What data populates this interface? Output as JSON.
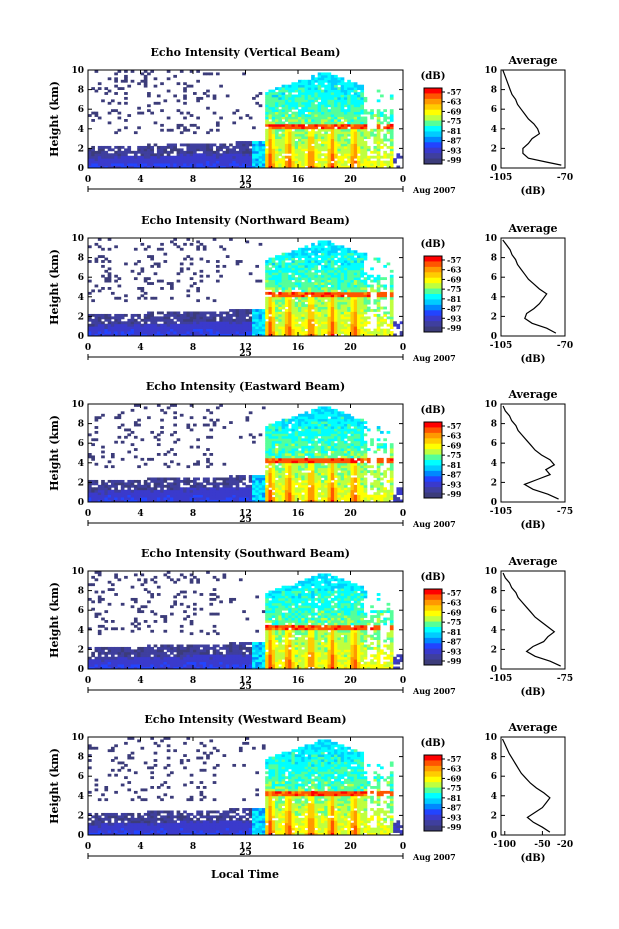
{
  "figure": {
    "bottom_xlabel": "Local Time"
  },
  "colorbar": {
    "label": "(dB)",
    "tick_labels": [
      "-57",
      "-63",
      "-69",
      "-75",
      "-81",
      "-87",
      "-93",
      "-99"
    ],
    "colors": [
      "#ff0000",
      "#ff5500",
      "#ff9900",
      "#ffcc00",
      "#ffff00",
      "#bfff3f",
      "#55ff99",
      "#00ffff",
      "#00ccff",
      "#0088ff",
      "#2244ff",
      "#3a3acc",
      "#3f3f9e",
      "#3c3c7a"
    ]
  },
  "chart_data": [
    {
      "type": "heatmap",
      "title": "Echo Intensity (Vertical Beam)",
      "ylabel": "Height (km)",
      "ylim": [
        0,
        10
      ],
      "y_ticks": [
        "0",
        "2",
        "4",
        "6",
        "8",
        "10"
      ],
      "xlim": [
        0,
        24
      ],
      "x_ticks": [
        "0",
        "4",
        "8",
        "12",
        "16",
        "20",
        "0"
      ],
      "date_label": "25",
      "month_label": "Aug 2007",
      "color_range_db": [
        -99,
        -57
      ],
      "average_profile": {
        "title": "Average",
        "xlabel": "(dB)",
        "x_tick_labels": [
          "-105",
          "-70"
        ],
        "xlim": [
          -105,
          -70
        ],
        "ylim": [
          0,
          10
        ],
        "y_ticks": [
          "0",
          "2",
          "4",
          "6",
          "8",
          "10"
        ],
        "height_km": [
          0.3,
          0.6,
          1.0,
          1.5,
          2.0,
          2.5,
          3.0,
          3.5,
          4.0,
          4.5,
          5.0,
          5.5,
          6.0,
          6.5,
          7.0,
          7.5,
          8.0,
          8.5,
          9.0,
          9.5,
          10.0
        ],
        "db": [
          -72,
          -80,
          -90,
          -93,
          -93,
          -90,
          -88,
          -84,
          -85,
          -87,
          -90,
          -92,
          -94,
          -96,
          -97,
          -99,
          -100,
          -101,
          -102,
          -103,
          -104
        ]
      }
    },
    {
      "type": "heatmap",
      "title": "Echo Intensity (Northward Beam)",
      "ylabel": "Height (km)",
      "ylim": [
        0,
        10
      ],
      "y_ticks": [
        "0",
        "2",
        "4",
        "6",
        "8",
        "10"
      ],
      "xlim": [
        0,
        24
      ],
      "x_ticks": [
        "0",
        "4",
        "8",
        "12",
        "16",
        "20",
        "0"
      ],
      "date_label": "25",
      "month_label": "Aug 2007",
      "color_range_db": [
        -99,
        -57
      ],
      "average_profile": {
        "title": "Average",
        "xlabel": "(dB)",
        "x_tick_labels": [
          "-105",
          "-70"
        ],
        "xlim": [
          -105,
          -70
        ],
        "ylim": [
          0,
          10
        ],
        "y_ticks": [
          "0",
          "2",
          "4",
          "6",
          "8",
          "10"
        ],
        "height_km": [
          0.3,
          0.8,
          1.3,
          1.8,
          2.3,
          2.8,
          3.3,
          3.8,
          4.3,
          4.8,
          5.3,
          5.8,
          6.3,
          6.8,
          7.3,
          7.8,
          8.3,
          8.8,
          9.3,
          9.8
        ],
        "db": [
          -75,
          -80,
          -88,
          -92,
          -91,
          -87,
          -84,
          -82,
          -80,
          -84,
          -87,
          -90,
          -92,
          -94,
          -96,
          -97,
          -99,
          -100,
          -102,
          -104
        ]
      }
    },
    {
      "type": "heatmap",
      "title": "Echo Intensity (Eastward Beam)",
      "ylabel": "Height (km)",
      "ylim": [
        0,
        10
      ],
      "y_ticks": [
        "0",
        "2",
        "4",
        "6",
        "8",
        "10"
      ],
      "xlim": [
        0,
        24
      ],
      "x_ticks": [
        "0",
        "4",
        "8",
        "12",
        "16",
        "20",
        "0"
      ],
      "date_label": "25",
      "month_label": "Aug 2007",
      "color_range_db": [
        -99,
        -57
      ],
      "average_profile": {
        "title": "Average",
        "xlabel": "(dB)",
        "x_tick_labels": [
          "-105",
          "-75"
        ],
        "xlim": [
          -105,
          -75
        ],
        "ylim": [
          0,
          10
        ],
        "y_ticks": [
          "0",
          "2",
          "4",
          "6",
          "8",
          "10"
        ],
        "height_km": [
          0.3,
          0.8,
          1.3,
          1.8,
          2.3,
          2.8,
          3.3,
          3.8,
          4.3,
          4.8,
          5.3,
          5.8,
          6.3,
          6.8,
          7.3,
          7.8,
          8.3,
          8.8,
          9.3,
          9.8
        ],
        "db": [
          -78,
          -83,
          -90,
          -94,
          -88,
          -82,
          -84,
          -80,
          -82,
          -86,
          -89,
          -91,
          -93,
          -95,
          -97,
          -98,
          -100,
          -101,
          -103,
          -104
        ]
      }
    },
    {
      "type": "heatmap",
      "title": "Echo Intensity (Southward Beam)",
      "ylabel": "Height (km)",
      "ylim": [
        0,
        10
      ],
      "y_ticks": [
        "0",
        "2",
        "4",
        "6",
        "8",
        "10"
      ],
      "xlim": [
        0,
        24
      ],
      "x_ticks": [
        "0",
        "4",
        "8",
        "12",
        "16",
        "20",
        "0"
      ],
      "date_label": "25",
      "month_label": "Aug 2007",
      "color_range_db": [
        -99,
        -57
      ],
      "average_profile": {
        "title": "Average",
        "xlabel": "(dB)",
        "x_tick_labels": [
          "-105",
          "-75"
        ],
        "xlim": [
          -105,
          -75
        ],
        "ylim": [
          0,
          10
        ],
        "y_ticks": [
          "0",
          "2",
          "4",
          "6",
          "8",
          "10"
        ],
        "height_km": [
          0.3,
          0.8,
          1.3,
          1.8,
          2.3,
          2.8,
          3.3,
          3.8,
          4.3,
          4.8,
          5.3,
          5.8,
          6.3,
          6.8,
          7.3,
          7.8,
          8.3,
          8.8,
          9.3,
          9.8
        ],
        "db": [
          -77,
          -82,
          -89,
          -93,
          -90,
          -85,
          -83,
          -80,
          -83,
          -86,
          -89,
          -91,
          -93,
          -95,
          -97,
          -98,
          -100,
          -101,
          -103,
          -104
        ]
      }
    },
    {
      "type": "heatmap",
      "title": "Echo Intensity (Westward Beam)",
      "ylabel": "Height (km)",
      "ylim": [
        0,
        10
      ],
      "y_ticks": [
        "0",
        "2",
        "4",
        "6",
        "8",
        "10"
      ],
      "xlim": [
        0,
        24
      ],
      "x_ticks": [
        "0",
        "4",
        "8",
        "12",
        "16",
        "20",
        "0"
      ],
      "date_label": "25",
      "month_label": "Aug 2007",
      "color_range_db": [
        -99,
        -57
      ],
      "average_profile": {
        "title": "Average",
        "xlabel": "(dB)",
        "x_tick_labels": [
          "-100",
          "-50",
          "-20"
        ],
        "xlim": [
          -105,
          -20
        ],
        "ylim": [
          0,
          10
        ],
        "y_ticks": [
          "0",
          "2",
          "4",
          "6",
          "8",
          "10"
        ],
        "height_km": [
          0.3,
          0.8,
          1.3,
          1.8,
          2.3,
          2.8,
          3.3,
          3.8,
          4.3,
          4.8,
          5.3,
          5.8,
          6.3,
          6.8,
          7.3,
          7.8,
          8.3,
          8.8,
          9.3,
          9.8
        ],
        "db": [
          -40,
          -50,
          -62,
          -70,
          -60,
          -50,
          -45,
          -40,
          -48,
          -58,
          -66,
          -72,
          -78,
          -82,
          -86,
          -90,
          -94,
          -97,
          -100,
          -103
        ]
      }
    }
  ]
}
